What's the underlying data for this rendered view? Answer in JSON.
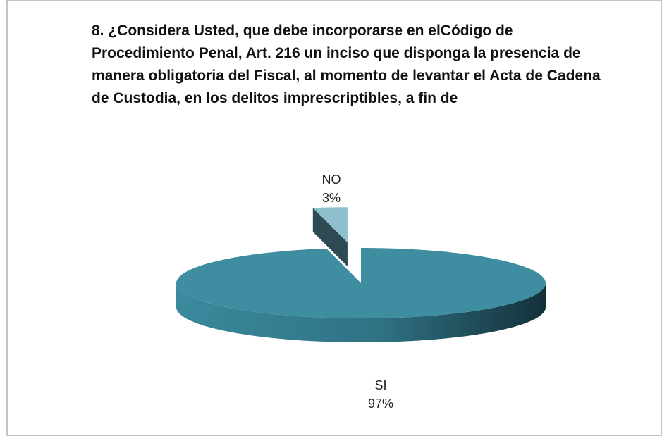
{
  "chart_data": {
    "type": "pie3d",
    "title": "8. ¿Considera Usted, que debe incorporarse en elCódigo  de Procedimiento Penal, Art. 216 un inciso que disponga la presencia de manera obligatoria del Fiscal, al momento de levantar el Acta de Cadena de Custodia, en los delitos imprescriptibles, a fin de",
    "categories": [
      "SI",
      "NO"
    ],
    "values": [
      97,
      3
    ],
    "value_labels": [
      "97%",
      "3%"
    ],
    "colors": [
      "#3f8da1",
      "#8dbfcd"
    ]
  }
}
